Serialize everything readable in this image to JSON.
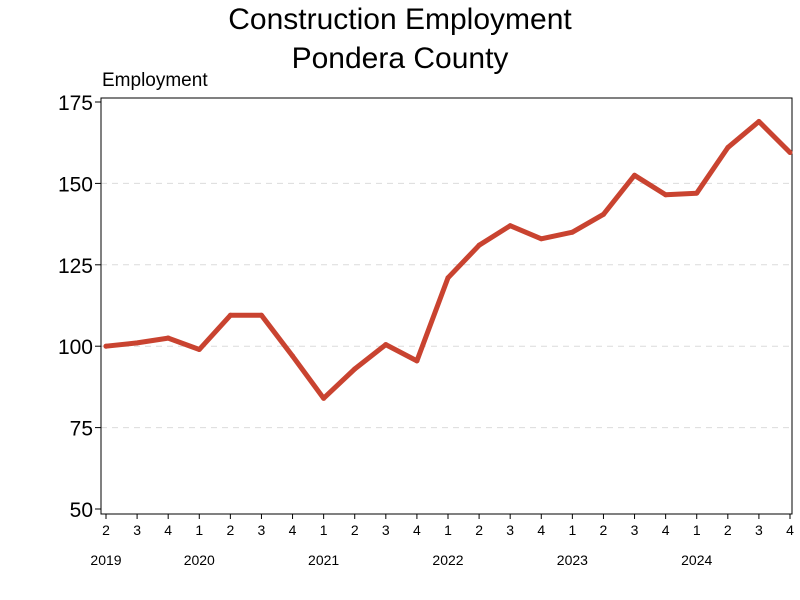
{
  "chart_data": {
    "type": "line",
    "title_lines": [
      "Construction Employment",
      "Pondera County"
    ],
    "ylabel": "Employment",
    "xlabel": "",
    "ylim": [
      50,
      175
    ],
    "yticks": [
      50,
      75,
      100,
      125,
      150,
      175
    ],
    "grid": "horizontal dashed",
    "legend": "none",
    "line_color": "#c94330",
    "categories": [
      "2",
      "3",
      "4",
      "1",
      "2",
      "3",
      "4",
      "1",
      "2",
      "3",
      "4",
      "1",
      "2",
      "3",
      "4",
      "1",
      "2",
      "3",
      "4",
      "1",
      "2",
      "3",
      "4"
    ],
    "year_labels": [
      {
        "label": "2019",
        "index": 0
      },
      {
        "label": "2020",
        "index": 3
      },
      {
        "label": "2021",
        "index": 7
      },
      {
        "label": "2022",
        "index": 11
      },
      {
        "label": "2023",
        "index": 15
      },
      {
        "label": "2024",
        "index": 19
      }
    ],
    "series": [
      {
        "values": [
          100,
          101,
          102.5,
          99,
          109.5,
          109.5,
          97,
          84,
          93,
          100.5,
          95.5,
          121,
          131,
          137,
          133,
          135,
          140.5,
          152.5,
          146.5,
          147,
          161,
          169,
          159.5
        ]
      }
    ]
  }
}
